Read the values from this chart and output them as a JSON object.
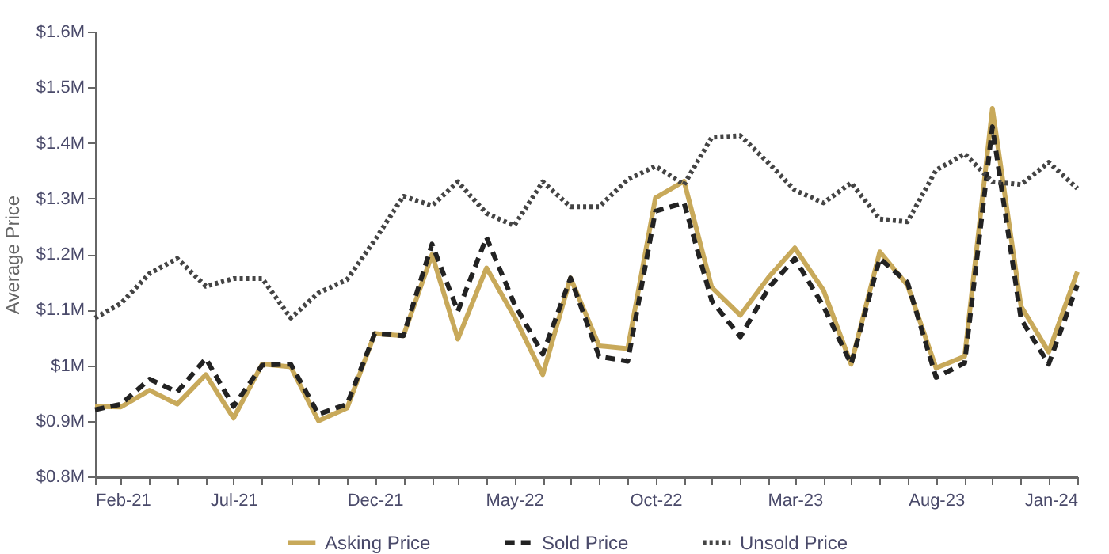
{
  "chart_data": {
    "type": "line",
    "ylabel": "Average Price",
    "x": [
      "2021-02",
      "2021-03",
      "2021-04",
      "2021-05",
      "2021-06",
      "2021-07",
      "2021-08",
      "2021-09",
      "2021-10",
      "2021-11",
      "2021-12",
      "2022-01",
      "2022-02",
      "2022-03",
      "2022-04",
      "2022-05",
      "2022-06",
      "2022-07",
      "2022-08",
      "2022-09",
      "2022-10",
      "2022-11",
      "2022-12",
      "2023-01",
      "2023-02",
      "2023-03",
      "2023-04",
      "2023-05",
      "2023-06",
      "2023-07",
      "2023-08",
      "2023-09",
      "2023-10",
      "2023-11",
      "2023-12",
      "2024-01"
    ],
    "series": [
      {
        "name": "Asking Price",
        "color": "#c8a95a",
        "line_style": "solid",
        "values": [
          0.926,
          0.925,
          0.955,
          0.93,
          0.983,
          0.905,
          1.002,
          0.997,
          0.9,
          0.923,
          1.057,
          1.053,
          1.199,
          1.047,
          1.175,
          1.088,
          0.983,
          1.157,
          1.035,
          1.03,
          1.301,
          1.331,
          1.14,
          1.09,
          1.159,
          1.211,
          1.135,
          1.002,
          1.204,
          1.144,
          0.995,
          1.016,
          1.462,
          1.106,
          1.024,
          1.168
        ]
      },
      {
        "name": "Sold Price",
        "color": "#222222",
        "line_style": "dashed",
        "values": [
          0.92,
          0.93,
          0.975,
          0.952,
          1.012,
          0.926,
          1.0,
          1.002,
          0.912,
          0.93,
          1.057,
          1.053,
          1.218,
          1.097,
          1.23,
          1.111,
          1.02,
          1.157,
          1.016,
          1.007,
          1.277,
          1.292,
          1.116,
          1.051,
          1.14,
          1.192,
          1.106,
          1.002,
          1.192,
          1.149,
          0.978,
          1.004,
          1.429,
          1.083,
          1.002,
          1.144
        ]
      },
      {
        "name": "Unsold Price",
        "color": "#444444",
        "line_style": "dotted",
        "values": [
          1.085,
          1.111,
          1.165,
          1.192,
          1.142,
          1.156,
          1.156,
          1.085,
          1.13,
          1.154,
          1.225,
          1.304,
          1.287,
          1.33,
          1.273,
          1.251,
          1.33,
          1.285,
          1.285,
          1.334,
          1.358,
          1.325,
          1.41,
          1.413,
          1.363,
          1.315,
          1.292,
          1.328,
          1.263,
          1.258,
          1.351,
          1.38,
          1.33,
          1.325,
          1.365,
          1.318
        ]
      }
    ],
    "xlim": [
      "2021-02",
      "2024-01"
    ],
    "xticks": [
      {
        "value": "2021-02",
        "label": "Feb-21"
      },
      {
        "value": "2021-03",
        "label": null
      },
      {
        "value": "2021-04",
        "label": null
      },
      {
        "value": "2021-05",
        "label": null
      },
      {
        "value": "2021-06",
        "label": null
      },
      {
        "value": "2021-07",
        "label": "Jul-21"
      },
      {
        "value": "2021-08",
        "label": null
      },
      {
        "value": "2021-09",
        "label": null
      },
      {
        "value": "2021-10",
        "label": null
      },
      {
        "value": "2021-11",
        "label": null
      },
      {
        "value": "2021-12",
        "label": "Dec-21"
      },
      {
        "value": "2022-01",
        "label": null
      },
      {
        "value": "2022-02",
        "label": null
      },
      {
        "value": "2022-03",
        "label": null
      },
      {
        "value": "2022-04",
        "label": null
      },
      {
        "value": "2022-05",
        "label": "May-22"
      },
      {
        "value": "2022-06",
        "label": null
      },
      {
        "value": "2022-07",
        "label": null
      },
      {
        "value": "2022-08",
        "label": null
      },
      {
        "value": "2022-09",
        "label": null
      },
      {
        "value": "2022-10",
        "label": "Oct-22"
      },
      {
        "value": "2022-11",
        "label": null
      },
      {
        "value": "2022-12",
        "label": null
      },
      {
        "value": "2023-01",
        "label": null
      },
      {
        "value": "2023-02",
        "label": null
      },
      {
        "value": "2023-03",
        "label": "Mar-23"
      },
      {
        "value": "2023-04",
        "label": null
      },
      {
        "value": "2023-05",
        "label": null
      },
      {
        "value": "2023-06",
        "label": null
      },
      {
        "value": "2023-07",
        "label": null
      },
      {
        "value": "2023-08",
        "label": "Aug-23"
      },
      {
        "value": "2023-09",
        "label": null
      },
      {
        "value": "2023-10",
        "label": null
      },
      {
        "value": "2023-11",
        "label": null
      },
      {
        "value": "2023-12",
        "label": null
      },
      {
        "value": "2024-01",
        "label": "Jan-24"
      }
    ],
    "ylim": [
      0.8,
      1.6
    ],
    "yticks": [
      {
        "value": 0.8,
        "label": "$0.8M"
      },
      {
        "value": 0.9,
        "label": "$0.9M"
      },
      {
        "value": 1.0,
        "label": "$1M"
      },
      {
        "value": 1.1,
        "label": "$1.1M"
      },
      {
        "value": 1.2,
        "label": "$1.2M"
      },
      {
        "value": 1.3,
        "label": "$1.3M"
      },
      {
        "value": 1.4,
        "label": "$1.4M"
      },
      {
        "value": 1.5,
        "label": "$1.5M"
      },
      {
        "value": 1.6,
        "label": "$1.6M"
      }
    ],
    "grid": false,
    "legend": "bottom",
    "marker": "none"
  }
}
